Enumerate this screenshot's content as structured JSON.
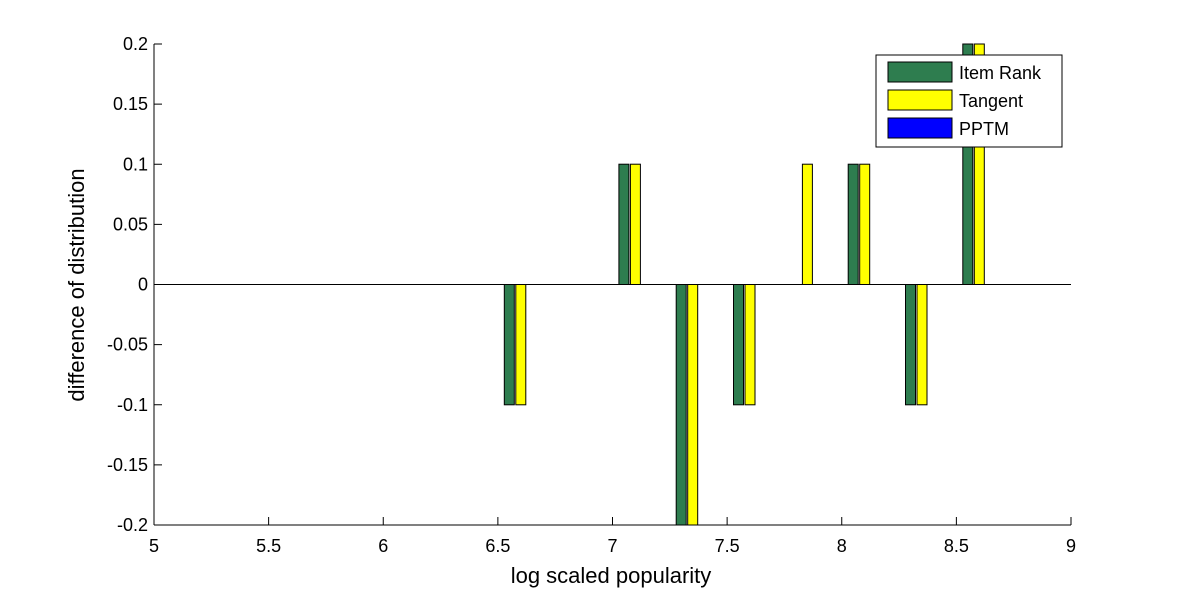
{
  "chart_data": {
    "type": "bar",
    "title": "",
    "xlabel": "log scaled popularity",
    "ylabel": "difference of distribution",
    "xlim": [
      5,
      9
    ],
    "ylim": [
      -0.2,
      0.2
    ],
    "x_ticks": [
      "5",
      "5.5",
      "6",
      "6.5",
      "7",
      "7.5",
      "8",
      "8.5",
      "9"
    ],
    "y_ticks": [
      "-0.2",
      "-0.15",
      "-0.1",
      "-0.05",
      "0",
      "0.05",
      "0.1",
      "0.15",
      "0.2"
    ],
    "x_tick_values": [
      5,
      5.5,
      6,
      6.5,
      7,
      7.5,
      8,
      8.5,
      9
    ],
    "y_tick_values": [
      -0.2,
      -0.15,
      -0.1,
      -0.05,
      0,
      0.05,
      0.1,
      0.15,
      0.2
    ],
    "x": [
      6.6,
      7.1,
      7.35,
      7.6,
      7.85,
      8.1,
      8.35,
      8.6
    ],
    "series": [
      {
        "name": "Item Rank",
        "color": "#2e7d4f",
        "values": [
          -0.1,
          0.1,
          -0.2,
          -0.1,
          0,
          0.1,
          -0.1,
          0.2
        ]
      },
      {
        "name": "Tangent",
        "color": "#ffff00",
        "values": [
          -0.1,
          0.1,
          -0.2,
          -0.1,
          0.1,
          0.1,
          -0.1,
          0.2
        ]
      },
      {
        "name": "PPTM",
        "color": "#0000ff",
        "values": [
          0,
          0,
          0,
          0,
          0,
          0,
          0,
          0
        ]
      }
    ],
    "grid": false,
    "legend_position": "top-right"
  }
}
